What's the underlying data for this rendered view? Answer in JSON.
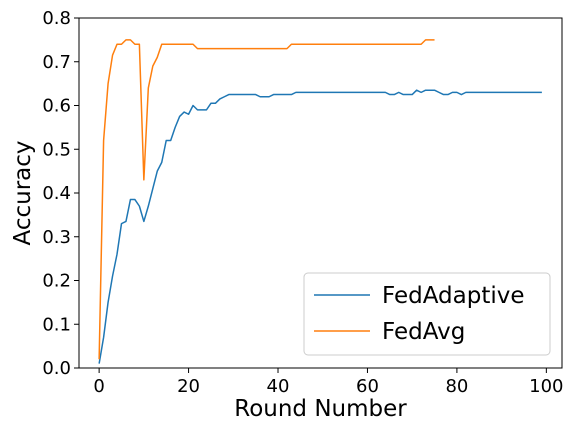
{
  "chart_data": {
    "type": "line",
    "title": "",
    "xlabel": "Round Number",
    "ylabel": "Accuracy",
    "xlim": [
      -4.5,
      103.5
    ],
    "ylim": [
      0.0,
      0.8
    ],
    "x_ticks": [
      0,
      20,
      40,
      60,
      80,
      100
    ],
    "y_ticks": [
      0.0,
      0.1,
      0.2,
      0.3,
      0.4,
      0.5,
      0.6,
      0.7,
      0.8
    ],
    "x_tick_labels": [
      "0",
      "20",
      "40",
      "60",
      "80",
      "100"
    ],
    "y_tick_labels": [
      "0.0",
      "0.1",
      "0.2",
      "0.3",
      "0.4",
      "0.5",
      "0.6",
      "0.7",
      "0.8"
    ],
    "grid": false,
    "legend_position": "lower-right",
    "series": [
      {
        "name": "FedAdaptive",
        "color": "#1f77b4",
        "x": [
          0,
          1,
          2,
          3,
          4,
          5,
          6,
          7,
          8,
          9,
          10,
          11,
          12,
          13,
          14,
          15,
          16,
          17,
          18,
          19,
          20,
          21,
          22,
          23,
          24,
          25,
          26,
          27,
          28,
          29,
          30,
          31,
          32,
          33,
          34,
          35,
          36,
          37,
          38,
          39,
          40,
          41,
          42,
          43,
          44,
          45,
          46,
          47,
          48,
          49,
          50,
          51,
          52,
          53,
          54,
          55,
          56,
          57,
          58,
          59,
          60,
          61,
          62,
          63,
          64,
          65,
          66,
          67,
          68,
          69,
          70,
          71,
          72,
          73,
          74,
          75,
          76,
          77,
          78,
          79,
          80,
          81,
          82,
          83,
          84,
          85,
          86,
          87,
          88,
          89,
          90,
          91,
          92,
          93,
          94,
          95,
          96,
          97,
          98,
          99
        ],
        "y": [
          0.01,
          0.07,
          0.15,
          0.21,
          0.26,
          0.33,
          0.335,
          0.385,
          0.385,
          0.37,
          0.335,
          0.37,
          0.41,
          0.45,
          0.47,
          0.52,
          0.52,
          0.55,
          0.575,
          0.585,
          0.58,
          0.6,
          0.59,
          0.59,
          0.59,
          0.605,
          0.605,
          0.615,
          0.62,
          0.625,
          0.625,
          0.625,
          0.625,
          0.625,
          0.625,
          0.625,
          0.62,
          0.62,
          0.62,
          0.625,
          0.625,
          0.625,
          0.625,
          0.625,
          0.63,
          0.63,
          0.63,
          0.63,
          0.63,
          0.63,
          0.63,
          0.63,
          0.63,
          0.63,
          0.63,
          0.63,
          0.63,
          0.63,
          0.63,
          0.63,
          0.63,
          0.63,
          0.63,
          0.63,
          0.63,
          0.625,
          0.625,
          0.63,
          0.625,
          0.625,
          0.625,
          0.635,
          0.63,
          0.635,
          0.635,
          0.635,
          0.63,
          0.625,
          0.625,
          0.63,
          0.63,
          0.625,
          0.63,
          0.63,
          0.63,
          0.63,
          0.63,
          0.63,
          0.63,
          0.63,
          0.63,
          0.63,
          0.63,
          0.63,
          0.63,
          0.63,
          0.63,
          0.63,
          0.63,
          0.63
        ]
      },
      {
        "name": "FedAvg",
        "color": "#ff7f0e",
        "x": [
          0,
          1,
          2,
          3,
          4,
          5,
          6,
          7,
          8,
          9,
          10,
          11,
          12,
          13,
          14,
          15,
          16,
          17,
          18,
          19,
          20,
          21,
          22,
          23,
          24,
          25,
          26,
          27,
          28,
          29,
          30,
          31,
          32,
          33,
          34,
          35,
          36,
          37,
          38,
          39,
          40,
          41,
          42,
          43,
          44,
          45,
          46,
          47,
          48,
          49,
          50,
          51,
          52,
          53,
          54,
          55,
          56,
          57,
          58,
          59,
          60,
          61,
          62,
          63,
          64,
          65,
          66,
          67,
          68,
          69,
          70,
          71,
          72,
          73,
          74,
          75
        ],
        "y": [
          0.02,
          0.52,
          0.65,
          0.715,
          0.74,
          0.74,
          0.75,
          0.75,
          0.74,
          0.74,
          0.43,
          0.64,
          0.69,
          0.71,
          0.74,
          0.74,
          0.74,
          0.74,
          0.74,
          0.74,
          0.74,
          0.74,
          0.73,
          0.73,
          0.73,
          0.73,
          0.73,
          0.73,
          0.73,
          0.73,
          0.73,
          0.73,
          0.73,
          0.73,
          0.73,
          0.73,
          0.73,
          0.73,
          0.73,
          0.73,
          0.73,
          0.73,
          0.73,
          0.74,
          0.74,
          0.74,
          0.74,
          0.74,
          0.74,
          0.74,
          0.74,
          0.74,
          0.74,
          0.74,
          0.74,
          0.74,
          0.74,
          0.74,
          0.74,
          0.74,
          0.74,
          0.74,
          0.74,
          0.74,
          0.74,
          0.74,
          0.74,
          0.74,
          0.74,
          0.74,
          0.74,
          0.74,
          0.74,
          0.75,
          0.75,
          0.75
        ]
      }
    ]
  }
}
